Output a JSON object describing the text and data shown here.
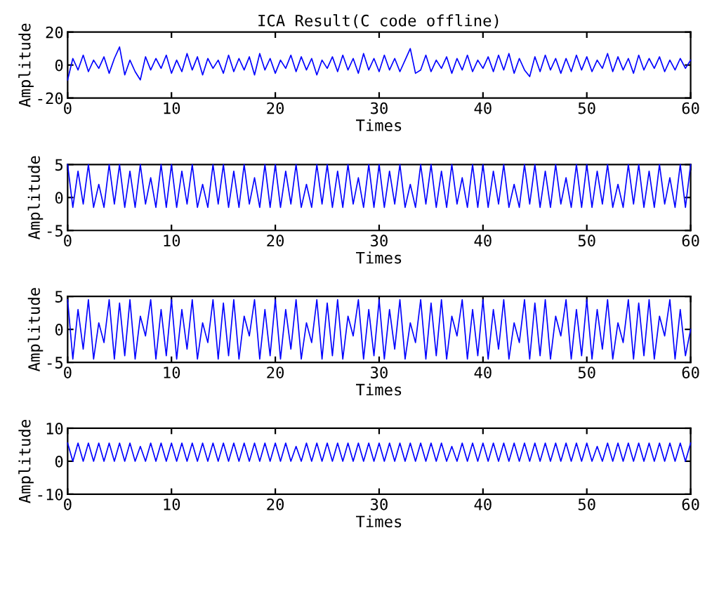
{
  "chart_data": [
    {
      "type": "line",
      "title": "ICA Result(C code offline)",
      "xlabel": "Times",
      "ylabel": "Amplitude",
      "color": "#0000ff",
      "xlim": [
        0,
        60
      ],
      "ylim": [
        -20,
        20
      ],
      "xticks": [
        0,
        10,
        20,
        30,
        40,
        50,
        60
      ],
      "yticks": [
        -20,
        0,
        20
      ],
      "x": [
        0,
        0.5,
        1,
        1.5,
        2,
        2.5,
        3,
        3.5,
        4,
        4.5,
        5,
        5.5,
        6,
        6.5,
        7,
        7.5,
        8,
        8.5,
        9,
        9.5,
        10,
        10.5,
        11,
        11.5,
        12,
        12.5,
        13,
        13.5,
        14,
        14.5,
        15,
        15.5,
        16,
        16.5,
        17,
        17.5,
        18,
        18.5,
        19,
        19.5,
        20,
        20.5,
        21,
        21.5,
        22,
        22.5,
        23,
        23.5,
        24,
        24.5,
        25,
        25.5,
        26,
        26.5,
        27,
        27.5,
        28,
        28.5,
        29,
        29.5,
        30,
        30.5,
        31,
        31.5,
        32,
        32.5,
        33,
        33.5,
        34,
        34.5,
        35,
        35.5,
        36,
        36.5,
        37,
        37.5,
        38,
        38.5,
        39,
        39.5,
        40,
        40.5,
        41,
        41.5,
        42,
        42.5,
        43,
        43.5,
        44,
        44.5,
        45,
        45.5,
        46,
        46.5,
        47,
        47.5,
        48,
        48.5,
        49,
        49.5,
        50,
        50.5,
        51,
        51.5,
        52,
        52.5,
        53,
        53.5,
        54,
        54.5,
        55,
        55.5,
        56,
        56.5,
        57,
        57.5,
        58,
        58.5,
        59,
        59.5,
        60
      ],
      "values": [
        -9,
        4,
        -3,
        6,
        -4,
        3,
        -2,
        5,
        -5,
        4,
        11,
        -6,
        3,
        -4,
        -9,
        5,
        -3,
        4,
        -2,
        6,
        -5,
        3,
        -4,
        7,
        -3,
        5,
        -6,
        4,
        -2,
        3,
        -5,
        6,
        -4,
        4,
        -3,
        5,
        -6,
        7,
        -3,
        4,
        -5,
        3,
        -2,
        6,
        -4,
        5,
        -3,
        4,
        -6,
        3,
        -2,
        5,
        -4,
        6,
        -3,
        4,
        -5,
        7,
        -3,
        4,
        -4,
        6,
        -3,
        4,
        -4,
        3,
        10,
        -5,
        -3,
        6,
        -4,
        3,
        -2,
        5,
        -5,
        4,
        -3,
        6,
        -4,
        3,
        -2,
        5,
        -4,
        6,
        -3,
        7,
        -5,
        4,
        -3,
        -7,
        5,
        -4,
        6,
        -3,
        4,
        -5,
        4,
        -4,
        6,
        -3,
        5,
        -4,
        3,
        -2,
        7,
        -4,
        5,
        -3,
        4,
        -5,
        6,
        -3,
        4,
        -2,
        5,
        -4,
        3,
        -3,
        4,
        -2,
        3
      ]
    },
    {
      "type": "line",
      "xlabel": "Times",
      "ylabel": "Amplitude",
      "color": "#0000ff",
      "xlim": [
        0,
        60
      ],
      "ylim": [
        -5,
        5
      ],
      "xticks": [
        0,
        10,
        20,
        30,
        40,
        50,
        60
      ],
      "yticks": [
        -5,
        0,
        5
      ],
      "x": [
        0,
        0.5,
        1,
        1.5,
        2,
        2.5,
        3,
        3.5,
        4,
        4.5,
        5,
        5.5,
        6,
        6.5,
        7,
        7.5,
        8,
        8.5,
        9,
        9.5,
        10,
        10.5,
        11,
        11.5,
        12,
        12.5,
        13,
        13.5,
        14,
        14.5,
        15,
        15.5,
        16,
        16.5,
        17,
        17.5,
        18,
        18.5,
        19,
        19.5,
        20,
        20.5,
        21,
        21.5,
        22,
        22.5,
        23,
        23.5,
        24,
        24.5,
        25,
        25.5,
        26,
        26.5,
        27,
        27.5,
        28,
        28.5,
        29,
        29.5,
        30,
        30.5,
        31,
        31.5,
        32,
        32.5,
        33,
        33.5,
        34,
        34.5,
        35,
        35.5,
        36,
        36.5,
        37,
        37.5,
        38,
        38.5,
        39,
        39.5,
        40,
        40.5,
        41,
        41.5,
        42,
        42.5,
        43,
        43.5,
        44,
        44.5,
        45,
        45.5,
        46,
        46.5,
        47,
        47.5,
        48,
        48.5,
        49,
        49.5,
        50,
        50.5,
        51,
        51.5,
        52,
        52.5,
        53,
        53.5,
        54,
        54.5,
        55,
        55.5,
        56,
        56.5,
        57,
        57.5,
        58,
        58.5,
        59,
        59.5,
        60
      ],
      "values": [
        5,
        -1.5,
        4,
        -1,
        5,
        -1.5,
        2,
        -1.5,
        5,
        -1,
        5,
        -1.5,
        4,
        -1.5,
        5,
        -1,
        3,
        -1.5,
        5,
        -1.5,
        5,
        -1.5,
        4,
        -1,
        5,
        -1.5,
        2,
        -1.5,
        5,
        -1,
        5,
        -1.5,
        4,
        -1.5,
        5,
        -1,
        3,
        -1.5,
        5,
        -1.5,
        5,
        -1.5,
        4,
        -1,
        5,
        -1.5,
        2,
        -1.5,
        5,
        -1,
        5,
        -1.5,
        4,
        -1.5,
        5,
        -1,
        3,
        -1.5,
        5,
        -1.5,
        5,
        -1.5,
        4,
        -1,
        5,
        -1.5,
        2,
        -1.5,
        5,
        -1,
        5,
        -1.5,
        4,
        -1.5,
        5,
        -1,
        3,
        -1.5,
        5,
        -1.5,
        5,
        -1.5,
        4,
        -1,
        5,
        -1.5,
        2,
        -1.5,
        5,
        -1,
        5,
        -1.5,
        4,
        -1.5,
        5,
        -1,
        3,
        -1.5,
        5,
        -1.5,
        5,
        -1.5,
        4,
        -1,
        5,
        -1.5,
        2,
        -1.5,
        5,
        -1,
        5,
        -1.5,
        4,
        -1.5,
        5,
        -1,
        3,
        -1.5,
        5,
        -1.5,
        5
      ]
    },
    {
      "type": "line",
      "xlabel": "Times",
      "ylabel": "Amplitude",
      "color": "#0000ff",
      "xlim": [
        0,
        60
      ],
      "ylim": [
        -5,
        5
      ],
      "xticks": [
        0,
        10,
        20,
        30,
        40,
        50,
        60
      ],
      "yticks": [
        -5,
        0,
        5
      ],
      "x": [
        0,
        0.5,
        1,
        1.5,
        2,
        2.5,
        3,
        3.5,
        4,
        4.5,
        5,
        5.5,
        6,
        6.5,
        7,
        7.5,
        8,
        8.5,
        9,
        9.5,
        10,
        10.5,
        11,
        11.5,
        12,
        12.5,
        13,
        13.5,
        14,
        14.5,
        15,
        15.5,
        16,
        16.5,
        17,
        17.5,
        18,
        18.5,
        19,
        19.5,
        20,
        20.5,
        21,
        21.5,
        22,
        22.5,
        23,
        23.5,
        24,
        24.5,
        25,
        25.5,
        26,
        26.5,
        27,
        27.5,
        28,
        28.5,
        29,
        29.5,
        30,
        30.5,
        31,
        31.5,
        32,
        32.5,
        33,
        33.5,
        34,
        34.5,
        35,
        35.5,
        36,
        36.5,
        37,
        37.5,
        38,
        38.5,
        39,
        39.5,
        40,
        40.5,
        41,
        41.5,
        42,
        42.5,
        43,
        43.5,
        44,
        44.5,
        45,
        45.5,
        46,
        46.5,
        47,
        47.5,
        48,
        48.5,
        49,
        49.5,
        50,
        50.5,
        51,
        51.5,
        52,
        52.5,
        53,
        53.5,
        54,
        54.5,
        55,
        55.5,
        56,
        56.5,
        57,
        57.5,
        58,
        58.5,
        59,
        59.5,
        60
      ],
      "values": [
        4.5,
        -4.5,
        3,
        -3,
        4.5,
        -4.5,
        1,
        -2,
        4.5,
        -4.5,
        4,
        -4,
        4.5,
        -4.5,
        2,
        -1,
        4.5,
        -4.5,
        3,
        -4,
        4.5,
        -4.5,
        3,
        -3,
        4.5,
        -4.5,
        1,
        -2,
        4.5,
        -4.5,
        4,
        -4,
        4.5,
        -4.5,
        2,
        -1,
        4.5,
        -4.5,
        3,
        -4,
        4.5,
        -4.5,
        3,
        -3,
        4.5,
        -4.5,
        1,
        -2,
        4.5,
        -4.5,
        4,
        -4,
        4.5,
        -4.5,
        2,
        -1,
        4.5,
        -4.5,
        3,
        -4,
        4.5,
        -4.5,
        3,
        -3,
        4.5,
        -4.5,
        1,
        -2,
        4.5,
        -4.5,
        4,
        -4,
        4.5,
        -4.5,
        2,
        -1,
        4.5,
        -4.5,
        3,
        -4,
        4.5,
        -4.5,
        3,
        -3,
        4.5,
        -4.5,
        1,
        -2,
        4.5,
        -4.5,
        4,
        -4,
        4.5,
        -4.5,
        2,
        -1,
        4.5,
        -4.5,
        3,
        -4,
        4.5,
        -4.5,
        3,
        -3,
        4.5,
        -4.5,
        1,
        -2,
        4.5,
        -4.5,
        4,
        -4,
        4.5,
        -4.5,
        2,
        -1,
        4.5,
        -4.5,
        3,
        -4,
        0
      ]
    },
    {
      "type": "line",
      "xlabel": "Times",
      "ylabel": "Amplitude",
      "color": "#0000ff",
      "xlim": [
        0,
        60
      ],
      "ylim": [
        -10,
        10
      ],
      "xticks": [
        0,
        10,
        20,
        30,
        40,
        50,
        60
      ],
      "yticks": [
        -10,
        0,
        10
      ],
      "x": [
        0,
        0.5,
        1,
        1.5,
        2,
        2.5,
        3,
        3.5,
        4,
        4.5,
        5,
        5.5,
        6,
        6.5,
        7,
        7.5,
        8,
        8.5,
        9,
        9.5,
        10,
        10.5,
        11,
        11.5,
        12,
        12.5,
        13,
        13.5,
        14,
        14.5,
        15,
        15.5,
        16,
        16.5,
        17,
        17.5,
        18,
        18.5,
        19,
        19.5,
        20,
        20.5,
        21,
        21.5,
        22,
        22.5,
        23,
        23.5,
        24,
        24.5,
        25,
        25.5,
        26,
        26.5,
        27,
        27.5,
        28,
        28.5,
        29,
        29.5,
        30,
        30.5,
        31,
        31.5,
        32,
        32.5,
        33,
        33.5,
        34,
        34.5,
        35,
        35.5,
        36,
        36.5,
        37,
        37.5,
        38,
        38.5,
        39,
        39.5,
        40,
        40.5,
        41,
        41.5,
        42,
        42.5,
        43,
        43.5,
        44,
        44.5,
        45,
        45.5,
        46,
        46.5,
        47,
        47.5,
        48,
        48.5,
        49,
        49.5,
        50,
        50.5,
        51,
        51.5,
        52,
        52.5,
        53,
        53.5,
        54,
        54.5,
        55,
        55.5,
        56,
        56.5,
        57,
        57.5,
        58,
        58.5,
        59,
        59.5,
        60
      ],
      "values": [
        5.5,
        0,
        5.5,
        0,
        5.5,
        0,
        5.5,
        0,
        5.5,
        0,
        5.5,
        0,
        5.5,
        0,
        4.5,
        0,
        5.5,
        0,
        5.5,
        0,
        5.5,
        0,
        5.5,
        0,
        5.5,
        0,
        5.5,
        0,
        5.5,
        0,
        5.5,
        0,
        5.5,
        0,
        5.5,
        0,
        5.5,
        0,
        5.5,
        0,
        5.5,
        0,
        5.5,
        0,
        4.5,
        0,
        5.5,
        0,
        5.5,
        0,
        5.5,
        0,
        5.5,
        0,
        5.5,
        0,
        5.5,
        0,
        5.5,
        0,
        5.5,
        0,
        5.5,
        0,
        5.5,
        0,
        5.5,
        0,
        5.5,
        0,
        5.5,
        0,
        5.5,
        0,
        4.5,
        0,
        5.5,
        0,
        5.5,
        0,
        5.5,
        0,
        5.5,
        0,
        5.5,
        0,
        5.5,
        0,
        5.5,
        0,
        5.5,
        0,
        5.5,
        0,
        5.5,
        0,
        5.5,
        0,
        5.5,
        0,
        5.5,
        0,
        4.5,
        0,
        5.5,
        0,
        5.5,
        0,
        5.5,
        0,
        5.5,
        0,
        5.5,
        0,
        5.5,
        0,
        5.5,
        0,
        5.5,
        0,
        5.5
      ]
    }
  ]
}
